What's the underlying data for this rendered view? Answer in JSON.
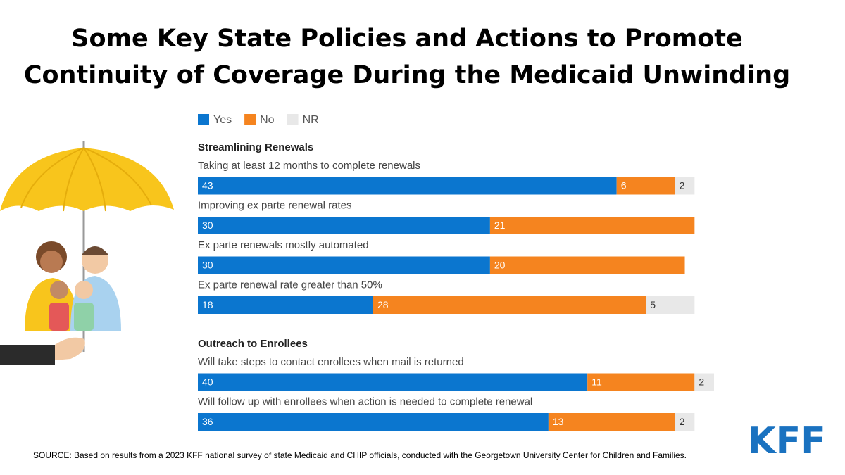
{
  "title": [
    "Some Key State Policies and Actions to Promote",
    "Continuity of Coverage During the Medicaid Unwinding"
  ],
  "source": "SOURCE: Based on results from a 2023 KFF national survey of state Medicaid and CHIP officials, conducted with the Georgetown University Center for Children and Families.",
  "logo": "KFF",
  "chart_data": [
    {
      "type": "bar",
      "orientation": "horizontal",
      "stacked": true,
      "title": "Streamlining Renewals",
      "categories": [
        "Taking at least 12 months to complete renewals",
        "Improving ex parte renewal rates",
        "Ex parte renewals mostly automated",
        "Ex parte renewal rate greater than 50%"
      ],
      "series": [
        {
          "name": "Yes",
          "color": "#0b76cf",
          "values": [
            43,
            30,
            30,
            18
          ]
        },
        {
          "name": "No",
          "color": "#f5841f",
          "values": [
            6,
            21,
            20,
            28
          ]
        },
        {
          "name": "NR",
          "color": "#e8e8e8",
          "values": [
            2,
            null,
            null,
            5
          ]
        }
      ]
    },
    {
      "type": "bar",
      "orientation": "horizontal",
      "stacked": true,
      "title": "Outreach to Enrollees",
      "categories": [
        "Will take steps to contact enrollees when mail is returned",
        "Will follow up with enrollees when action is needed to complete renewal"
      ],
      "series": [
        {
          "name": "Yes",
          "color": "#0b76cf",
          "values": [
            40,
            36
          ]
        },
        {
          "name": "No",
          "color": "#f5841f",
          "values": [
            11,
            13
          ]
        },
        {
          "name": "NR",
          "color": "#e8e8e8",
          "values": [
            2,
            2
          ]
        }
      ]
    }
  ]
}
